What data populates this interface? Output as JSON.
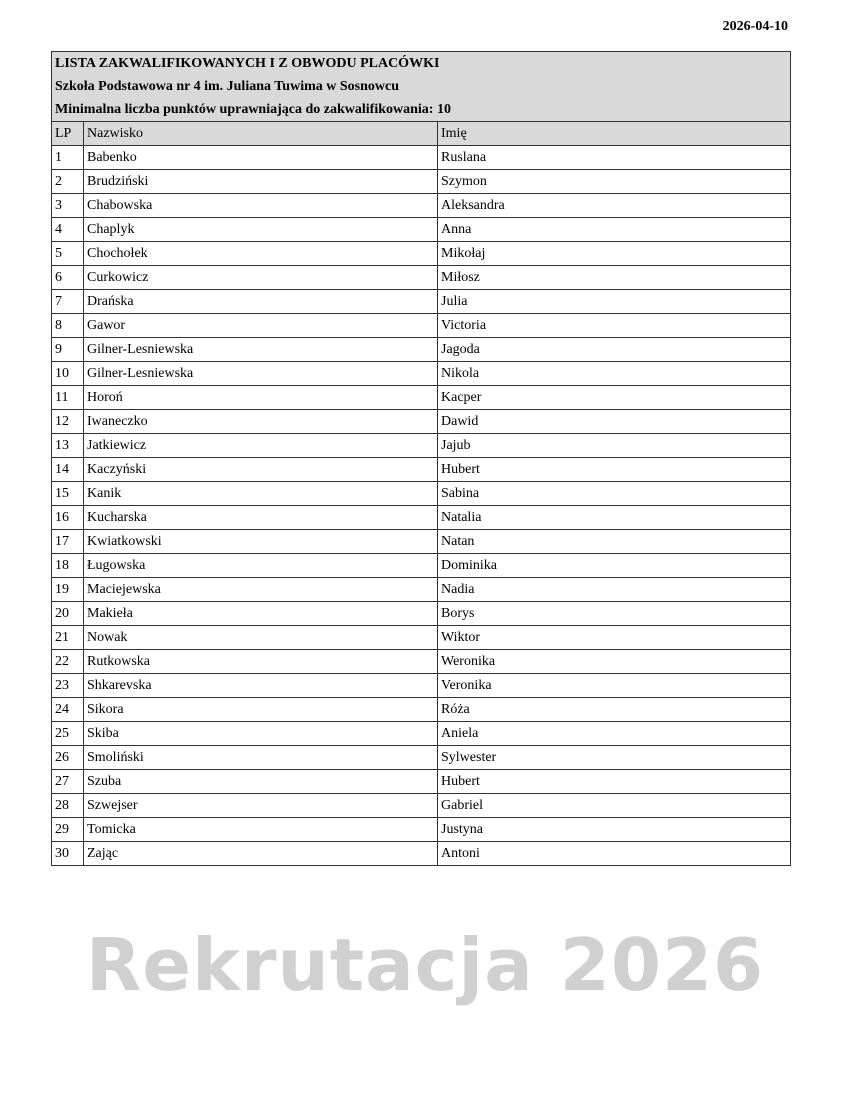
{
  "date": "2026-04-10",
  "title": "LISTA ZAKWALIFIKOWANYCH I Z OBWODU PLACÓWKI",
  "school": "Szkoła Podstawowa nr 4 im. Juliana Tuwima w Sosnowcu",
  "min_points": "Minimalna liczba punktów uprawniająca do zakwalifikowania: 10",
  "columns": [
    "LP",
    "Nazwisko",
    "Imię"
  ],
  "rows": [
    [
      "1",
      "Babenko",
      "Ruslana"
    ],
    [
      "2",
      "Brudziński",
      "Szymon"
    ],
    [
      "3",
      "Chabowska",
      "Aleksandra"
    ],
    [
      "4",
      "Chaplyk",
      "Anna"
    ],
    [
      "5",
      "Chochołek",
      "Mikołaj"
    ],
    [
      "6",
      "Curkowicz",
      "Miłosz"
    ],
    [
      "7",
      "Drańska",
      "Julia"
    ],
    [
      "8",
      "Gawor",
      "Victoria"
    ],
    [
      "9",
      "Gilner-Lesniewska",
      "Jagoda"
    ],
    [
      "10",
      "Gilner-Lesniewska",
      "Nikola"
    ],
    [
      "11",
      "Horoń",
      "Kacper"
    ],
    [
      "12",
      "Iwaneczko",
      "Dawid"
    ],
    [
      "13",
      "Jatkiewicz",
      "Jajub"
    ],
    [
      "14",
      "Kaczyński",
      "Hubert"
    ],
    [
      "15",
      "Kanik",
      "Sabina"
    ],
    [
      "16",
      "Kucharska",
      "Natalia"
    ],
    [
      "17",
      "Kwiatkowski",
      "Natan"
    ],
    [
      "18",
      "Ługowska",
      "Dominika"
    ],
    [
      "19",
      "Maciejewska",
      "Nadia"
    ],
    [
      "20",
      "Makieła",
      "Borys"
    ],
    [
      "21",
      "Nowak",
      "Wiktor"
    ],
    [
      "22",
      "Rutkowska",
      "Weronika"
    ],
    [
      "23",
      "Shkarevska",
      "Veronika"
    ],
    [
      "24",
      "Sikora",
      "Róża"
    ],
    [
      "25",
      "Skiba",
      "Aniela"
    ],
    [
      "26",
      "Smoliński",
      "Sylwester"
    ],
    [
      "27",
      "Szuba",
      "Hubert"
    ],
    [
      "28",
      "Szwejser",
      "Gabriel"
    ],
    [
      "29",
      "Tomicka",
      "Justyna"
    ],
    [
      "30",
      "Zając",
      "Antoni"
    ]
  ],
  "watermark": "Rekrutacja 2026"
}
